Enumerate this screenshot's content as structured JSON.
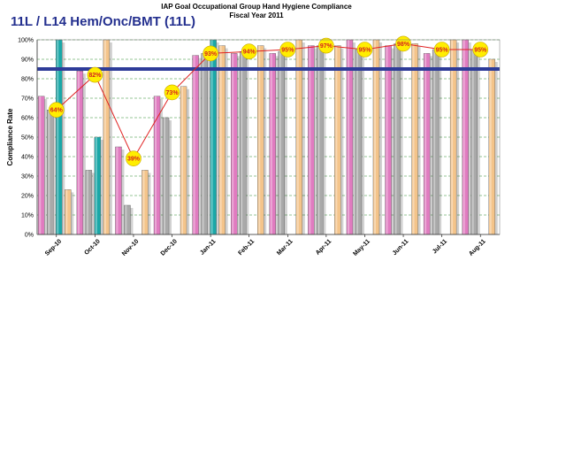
{
  "header": {
    "title_line1": "IAP Goal Occupational Group Hand Hygiene Compliance",
    "title_line2": "Fiscal Year 2011",
    "unit_title": "11L / L14 Hem/Onc/BMT (11L)"
  },
  "chart_data": {
    "type": "bar",
    "ylabel": "Compliance Rate",
    "ylim": [
      0,
      100
    ],
    "yticks": [
      "0%",
      "10%",
      "20%",
      "30%",
      "40%",
      "50%",
      "60%",
      "70%",
      "80%",
      "90%",
      "100%"
    ],
    "categories": [
      "Sep-10",
      "Oct-10",
      "Nov-10",
      "Dec-10",
      "Jan-11",
      "Feb-11",
      "Mar-11",
      "Apr-11",
      "May-11",
      "Jun-11",
      "Jul-11",
      "Aug-11"
    ],
    "series": [
      {
        "color": "#e07bc0",
        "values": [
          71,
          84,
          45,
          71,
          92,
          93,
          93,
          97,
          100,
          97,
          93,
          100
        ]
      },
      {
        "color": "#a9a9a9",
        "values": [
          64,
          33,
          15,
          60,
          93,
          94,
          94,
          97,
          95,
          98,
          95,
          95
        ]
      },
      {
        "color": "#1aa8a8",
        "values": [
          100,
          50,
          0,
          0,
          100,
          0,
          0,
          0,
          0,
          0,
          0,
          0
        ]
      },
      {
        "color": "#f4c48a",
        "values": [
          23,
          100,
          33,
          76,
          97,
          97,
          100,
          97,
          100,
          98,
          100,
          90
        ]
      }
    ],
    "line": {
      "color": "#e02020",
      "marker_color": "#ffee00",
      "values": [
        64,
        82,
        39,
        73,
        93,
        94,
        95,
        97,
        95,
        98,
        95,
        95
      ],
      "labels": [
        "64%",
        "82%",
        "39%",
        "73%",
        "93%",
        "94%",
        "95%",
        "97%",
        "95%",
        "98%",
        "95%",
        "95%"
      ]
    },
    "goal": {
      "value": 85,
      "color": "#2e3c99"
    },
    "grid": true,
    "grid_color": "#2e8b2e",
    "legend": "none"
  }
}
